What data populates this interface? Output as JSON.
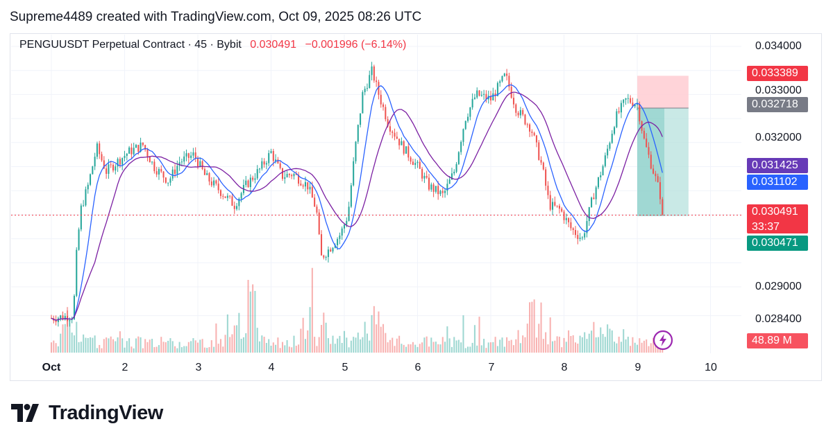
{
  "header": {
    "text": "Supreme4489 created with TradingView.com, Oct 09, 2025 08:26 UTC"
  },
  "legend": {
    "symbol": "PENGUUSDT Perpetual Contract · 45 · Bybit",
    "price": "0.030491",
    "change": "−0.001996 (−6.14%)"
  },
  "price_tags": {
    "stop": "0.033389",
    "entry": "0.032718",
    "ma_slow": "0.031425",
    "ma_fast": "0.031102",
    "last": "0.030491",
    "countdown": "33:37",
    "target": "0.030471",
    "volume": "48.89 M"
  },
  "y_axis_labels": [
    "0.034000",
    "0.033000",
    "0.032000",
    "0.029000",
    "0.028400"
  ],
  "x_axis_labels": [
    "Oct",
    "2",
    "3",
    "4",
    "5",
    "6",
    "7",
    "8",
    "9",
    "10"
  ],
  "footer": {
    "brand": "TradingView"
  },
  "colors": {
    "up": "#26a69a",
    "down": "#ef5350",
    "ma_fast": "#2962ff",
    "ma_slow": "#7b1fa2",
    "stop_zone": "#ffcdd2",
    "target_zone": "#b2dfdb"
  },
  "chart_data": {
    "type": "candlestick",
    "title": "PENGUUSDT Perpetual Contract · 45 · Bybit",
    "interval": "45",
    "ylim": [
      0.0282,
      0.0346
    ],
    "x_range_days": [
      1,
      10
    ],
    "last_price": 0.030491,
    "close_path": [
      [
        1.0,
        0.02835
      ],
      [
        1.3,
        0.0284
      ],
      [
        1.34,
        0.0296
      ],
      [
        1.4,
        0.0306
      ],
      [
        1.5,
        0.0311
      ],
      [
        1.62,
        0.0319
      ],
      [
        1.75,
        0.0314
      ],
      [
        1.9,
        0.0316
      ],
      [
        2.05,
        0.0318
      ],
      [
        2.25,
        0.03195
      ],
      [
        2.4,
        0.0315
      ],
      [
        2.6,
        0.0312
      ],
      [
        2.75,
        0.0316
      ],
      [
        2.95,
        0.03175
      ],
      [
        3.1,
        0.0313
      ],
      [
        3.3,
        0.031
      ],
      [
        3.5,
        0.0307
      ],
      [
        3.65,
        0.0311
      ],
      [
        3.85,
        0.03145
      ],
      [
        4.0,
        0.0318
      ],
      [
        4.15,
        0.0313
      ],
      [
        4.3,
        0.03135
      ],
      [
        4.5,
        0.0311
      ],
      [
        4.62,
        0.0306
      ],
      [
        4.68,
        0.0296
      ],
      [
        4.8,
        0.0298
      ],
      [
        4.95,
        0.0301
      ],
      [
        5.05,
        0.0305
      ],
      [
        5.15,
        0.0319
      ],
      [
        5.25,
        0.033
      ],
      [
        5.38,
        0.0335
      ],
      [
        5.45,
        0.0331
      ],
      [
        5.6,
        0.0324
      ],
      [
        5.8,
        0.0319
      ],
      [
        6.0,
        0.0315
      ],
      [
        6.15,
        0.0311
      ],
      [
        6.35,
        0.0309
      ],
      [
        6.5,
        0.0314
      ],
      [
        6.65,
        0.0325
      ],
      [
        6.8,
        0.033
      ],
      [
        7.0,
        0.0329
      ],
      [
        7.2,
        0.0334
      ],
      [
        7.35,
        0.0327
      ],
      [
        7.55,
        0.0323
      ],
      [
        7.7,
        0.0315
      ],
      [
        7.8,
        0.0307
      ],
      [
        7.95,
        0.0306
      ],
      [
        8.1,
        0.0302
      ],
      [
        8.25,
        0.03
      ],
      [
        8.4,
        0.0309
      ],
      [
        8.55,
        0.0316
      ],
      [
        8.7,
        0.0325
      ],
      [
        8.85,
        0.0329
      ],
      [
        9.0,
        0.0328
      ],
      [
        9.1,
        0.032
      ],
      [
        9.2,
        0.0315
      ],
      [
        9.3,
        0.031
      ],
      [
        9.37,
        0.03049
      ]
    ],
    "moving_averages": [
      {
        "name": "MA fast",
        "last": 0.031102
      },
      {
        "name": "MA slow",
        "last": 0.031425
      }
    ],
    "short_position": {
      "entry": 0.032718,
      "stop": 0.033389,
      "target": 0.030471,
      "start_day": 9.0,
      "end_day": 9.7
    },
    "volume_last": "48.89 M",
    "volume_spikes": [
      [
        1.3,
        1.0
      ],
      [
        3.7,
        2.4
      ],
      [
        4.6,
        2.0
      ],
      [
        5.38,
        1.8
      ],
      [
        7.6,
        2.2
      ],
      [
        8.5,
        1.0
      ]
    ]
  }
}
